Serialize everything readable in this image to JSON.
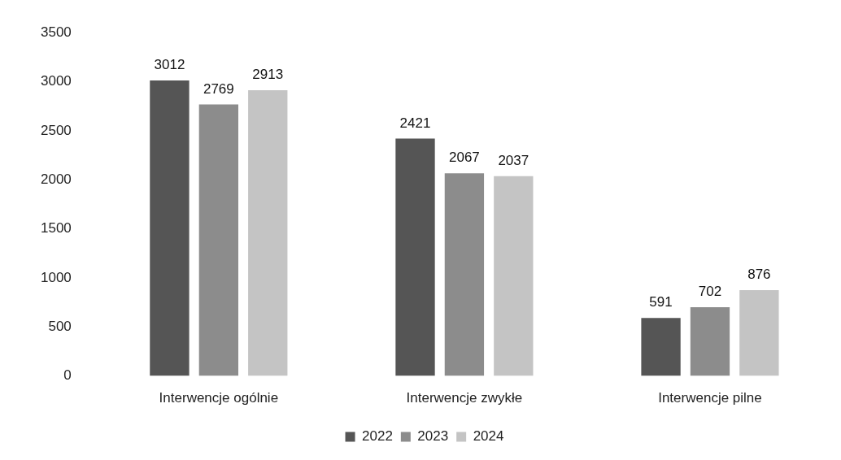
{
  "chart_data": {
    "type": "bar",
    "categories": [
      "Interwencje ogólnie",
      "Interwencje zwykłe",
      "Interwencje pilne"
    ],
    "series": [
      {
        "name": "2022",
        "color": "#555555",
        "values": [
          3012,
          2421,
          591
        ]
      },
      {
        "name": "2023",
        "color": "#8c8c8c",
        "values": [
          2769,
          2067,
          702
        ]
      },
      {
        "name": "2024",
        "color": "#c4c4c4",
        "values": [
          2913,
          2037,
          876
        ]
      }
    ],
    "ylim": [
      0,
      3500
    ],
    "yticks": [
      0,
      500,
      1000,
      1500,
      2000,
      2500,
      3000,
      3500
    ],
    "grid": false,
    "legend": "bottom",
    "data_labels": true
  }
}
